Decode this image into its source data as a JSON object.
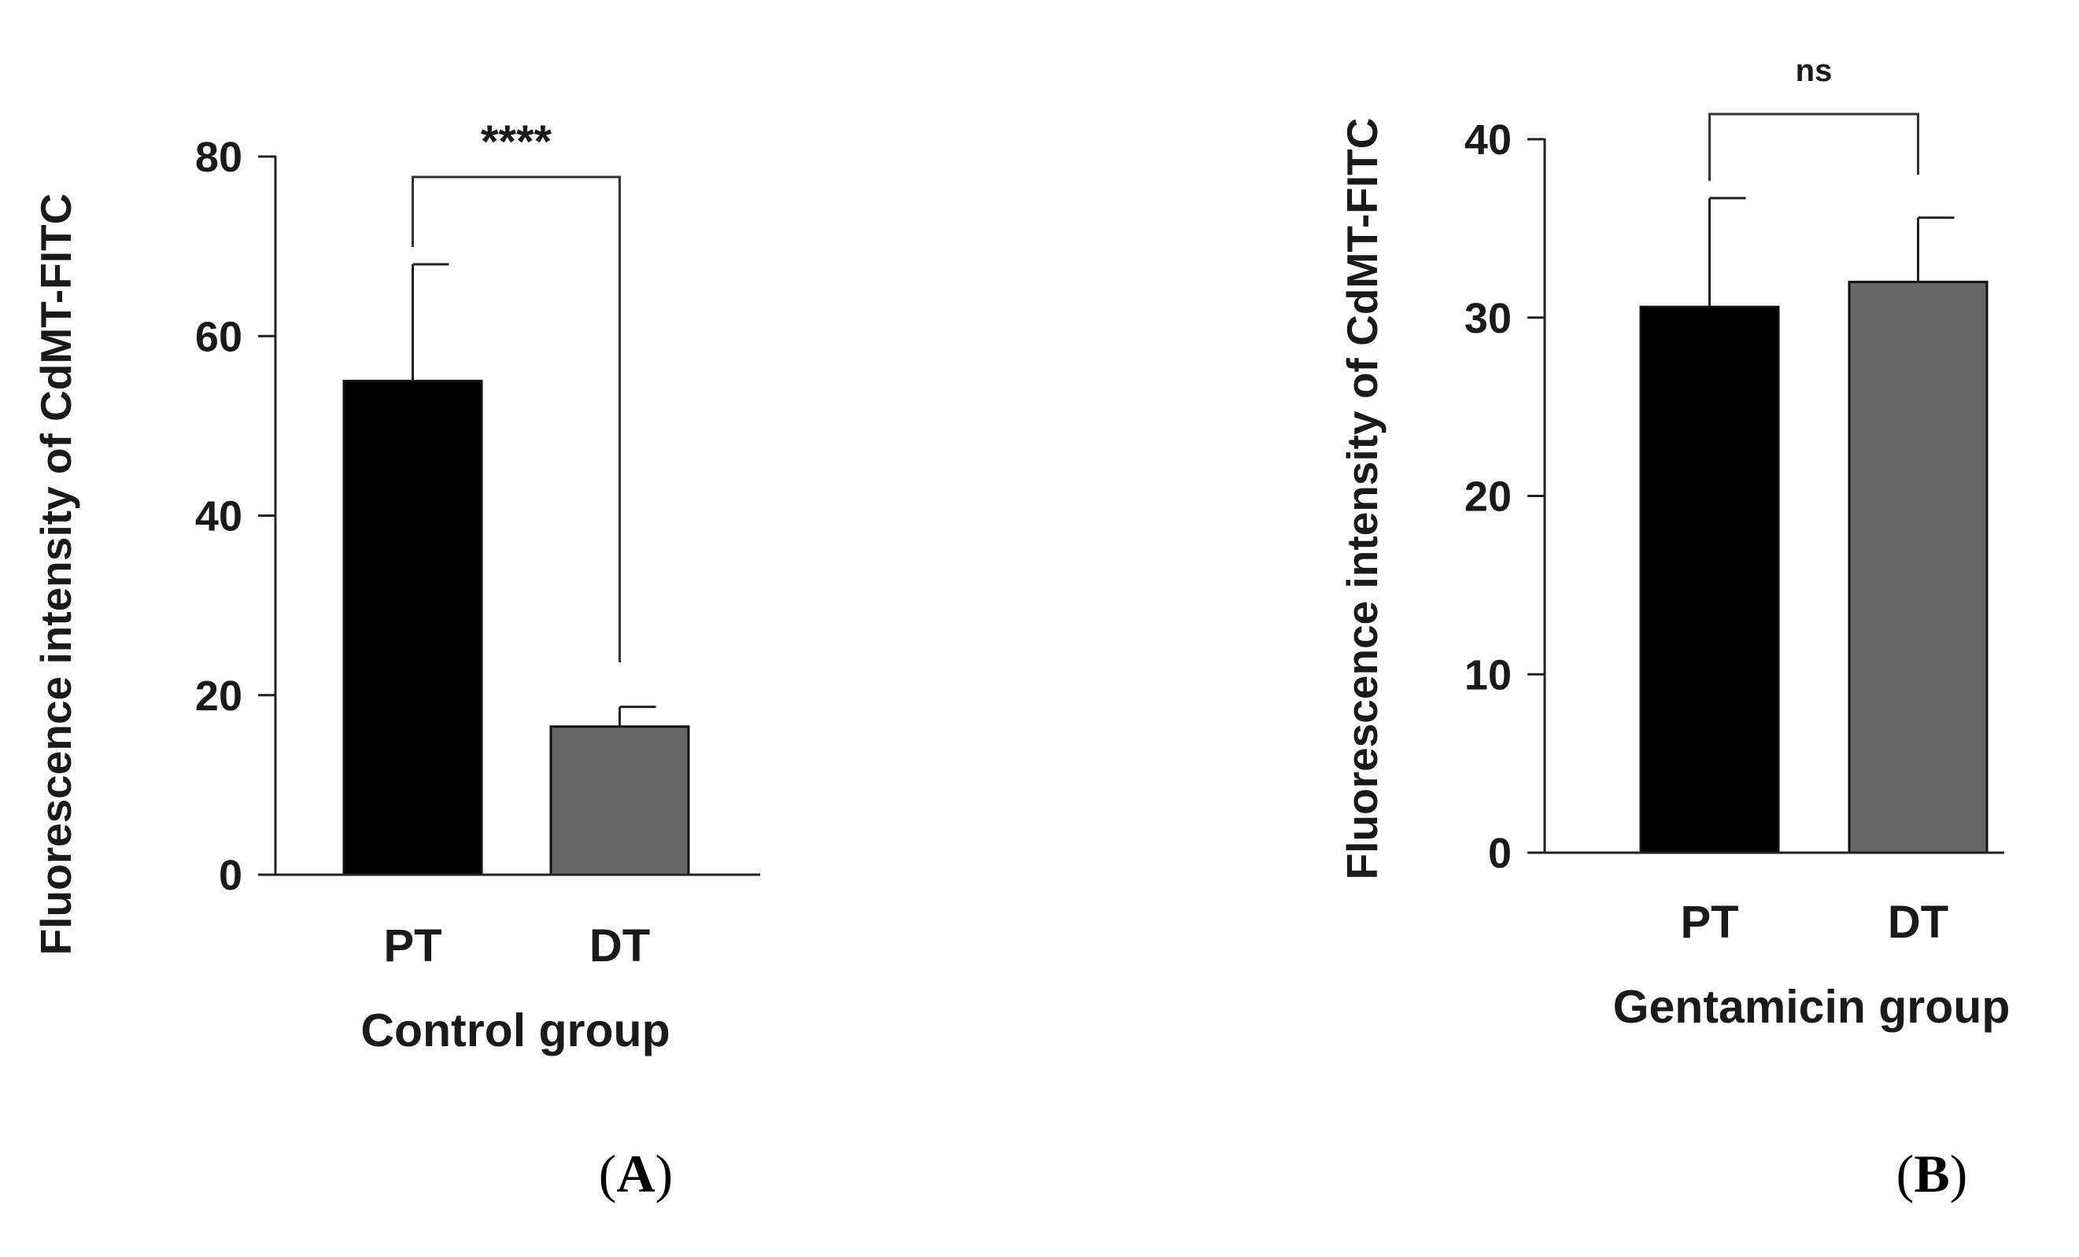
{
  "chart_data": [
    {
      "type": "bar",
      "panel_label": "(A)",
      "panel_letter": "A",
      "title": "",
      "xlabel": "Control group",
      "ylabel": "Fluorescence intensity of CdMT-FITC",
      "categories": [
        "PT",
        "DT"
      ],
      "values": [
        55,
        16.5
      ],
      "errors": [
        13,
        2.2
      ],
      "bar_colors": [
        "#000000",
        "#666666"
      ],
      "ylim": [
        0,
        80
      ],
      "yticks": [
        0,
        20,
        40,
        60,
        80
      ],
      "grid": false,
      "significance": {
        "label": "****",
        "from": 0,
        "to": 1
      }
    },
    {
      "type": "bar",
      "panel_label": "(B)",
      "panel_letter": "B",
      "title": "",
      "xlabel": "Gentamicin group",
      "ylabel": "Fluorescence intensity of CdMT-FITC",
      "categories": [
        "PT",
        "DT"
      ],
      "values": [
        30.6,
        32
      ],
      "errors": [
        6.1,
        3.6
      ],
      "bar_colors": [
        "#000000",
        "#666666"
      ],
      "ylim": [
        0,
        40
      ],
      "yticks": [
        0,
        10,
        20,
        30,
        40
      ],
      "grid": false,
      "significance": {
        "label": "ns",
        "from": 0,
        "to": 1
      }
    }
  ]
}
